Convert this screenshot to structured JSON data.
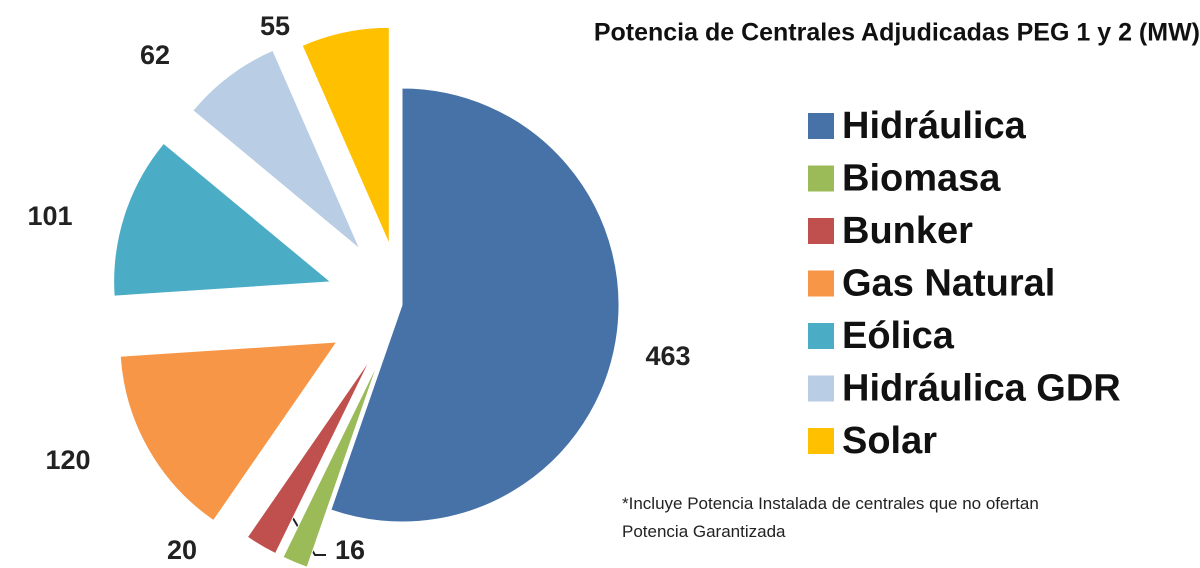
{
  "chart_data": {
    "type": "pie",
    "title": "Potencia de Centrales Adjudicadas PEG 1 y 2 (MW)",
    "categories": [
      "Hidráulica",
      "Biomasa",
      "Bunker",
      "Gas Natural",
      "Eólica",
      "Hidráulica GDR",
      "Solar"
    ],
    "values": [
      463,
      16,
      20,
      120,
      101,
      62,
      55
    ],
    "colors": [
      "#4672a8",
      "#9bbb59",
      "#c0504d",
      "#f79646",
      "#4bacc6",
      "#b9cde5",
      "#ffc000"
    ],
    "legend": "right",
    "note": "*Incluye Potencia Instalada de centrales que no ofertan Potencia Garantizada"
  }
}
